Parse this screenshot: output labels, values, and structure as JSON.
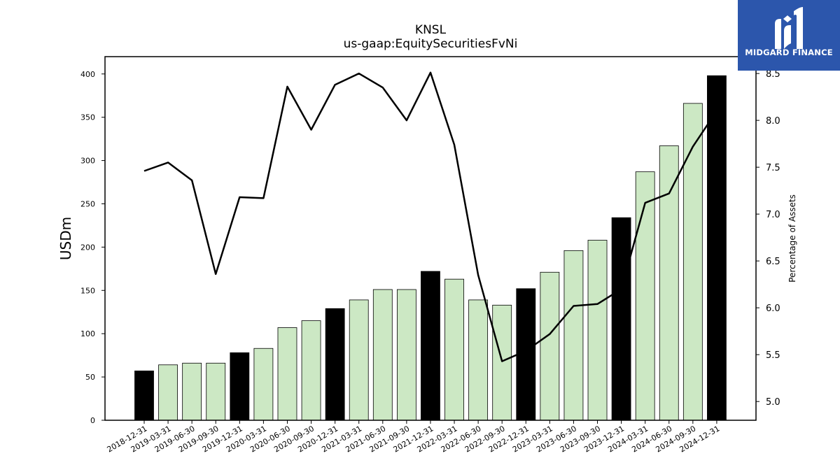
{
  "brand": {
    "name": "MIDGARD FINANCE",
    "logo_color": "#2c56ac"
  },
  "chart_data": {
    "type": "bar",
    "title": "KNSL",
    "subtitle": "us-gaap:EquitySecuritiesFvNi",
    "ylabel": "USDm",
    "y2label": "Percentage of Assets",
    "ylim": [
      0,
      420
    ],
    "y2lim": [
      4.8,
      8.68
    ],
    "yticks": [
      0,
      50,
      100,
      150,
      200,
      250,
      300,
      350,
      400
    ],
    "y2ticks": [
      "5.0",
      "5.5",
      "6.0",
      "6.5",
      "7.0",
      "7.5",
      "8.0",
      "8.5"
    ],
    "categories": [
      "2018-12-31",
      "2019-03-31",
      "2019-06-30",
      "2019-09-30",
      "2019-12-31",
      "2020-03-31",
      "2020-06-30",
      "2020-09-30",
      "2020-12-31",
      "2021-03-31",
      "2021-06-30",
      "2021-09-30",
      "2021-12-31",
      "2022-03-31",
      "2022-06-30",
      "2022-09-30",
      "2022-12-31",
      "2023-03-31",
      "2023-06-30",
      "2023-09-30",
      "2023-12-31",
      "2024-03-31",
      "2024-06-30",
      "2024-09-30",
      "2024-12-31"
    ],
    "series": [
      {
        "type": "bar",
        "values": [
          57,
          64,
          66,
          66,
          78,
          83,
          107,
          115,
          129,
          139,
          151,
          151,
          172,
          163,
          139,
          133,
          152,
          171,
          196,
          208,
          234,
          287,
          317,
          366,
          398
        ],
        "year_end_color": "#000000",
        "quarter_color": "#cce8c4"
      },
      {
        "type": "line",
        "axis": "right",
        "values": [
          7.46,
          7.55,
          7.36,
          6.36,
          7.18,
          7.17,
          8.36,
          7.9,
          8.38,
          8.5,
          8.35,
          8.0,
          8.51,
          7.74,
          6.35,
          5.43,
          5.54,
          5.72,
          6.02,
          6.04,
          6.2,
          7.12,
          7.22,
          7.72,
          8.1
        ],
        "color": "#000000"
      }
    ],
    "grid": false,
    "legend": "none"
  }
}
